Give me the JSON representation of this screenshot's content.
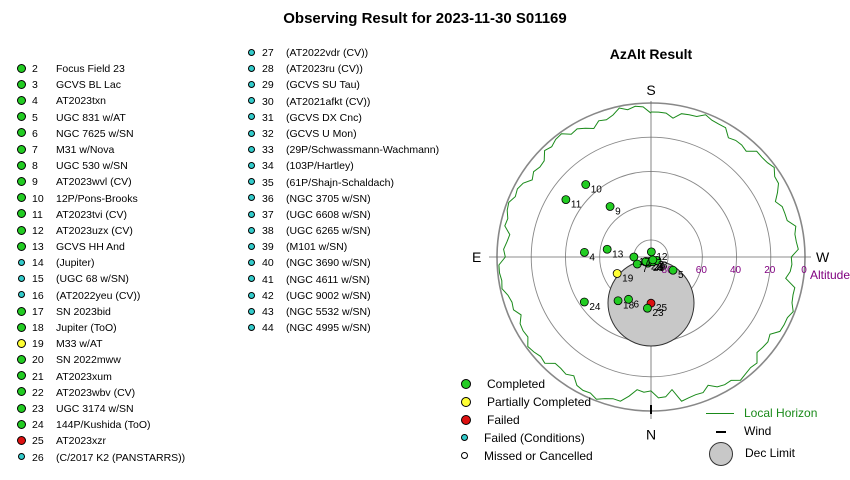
{
  "title": "Observing Result for 2023-11-30 S01169",
  "colors": {
    "completed": "#22cc22",
    "partial": "#ffff33",
    "failed": "#dd1111",
    "failed_conditions": "#33cccc",
    "missed": "#ffffff",
    "horizon": "#1a8a1a",
    "altitude_label": "#800080",
    "dec_limit": "#c8c8c8"
  },
  "targets_left": [
    {
      "id": "2",
      "name": "Focus Field 23",
      "status": "completed"
    },
    {
      "id": "3",
      "name": "GCVS BL Lac",
      "status": "completed"
    },
    {
      "id": "4",
      "name": "AT2023txn",
      "status": "completed"
    },
    {
      "id": "5",
      "name": "UGC 831 w/AT",
      "status": "completed"
    },
    {
      "id": "6",
      "name": "NGC 7625 w/SN",
      "status": "completed"
    },
    {
      "id": "7",
      "name": "M31 w/Nova",
      "status": "completed"
    },
    {
      "id": "8",
      "name": "UGC 530 w/SN",
      "status": "completed"
    },
    {
      "id": "9",
      "name": "AT2023wvl (CV)",
      "status": "completed"
    },
    {
      "id": "10",
      "name": "12P/Pons-Brooks",
      "status": "completed"
    },
    {
      "id": "11",
      "name": "AT2023tvi (CV)",
      "status": "completed"
    },
    {
      "id": "12",
      "name": "AT2023uzx (CV)",
      "status": "completed"
    },
    {
      "id": "13",
      "name": "GCVS HH And",
      "status": "completed"
    },
    {
      "id": "14",
      "name": "(Jupiter)",
      "status": "failed_conditions"
    },
    {
      "id": "15",
      "name": "(UGC 68 w/SN)",
      "status": "failed_conditions"
    },
    {
      "id": "16",
      "name": "(AT2022yeu (CV))",
      "status": "failed_conditions"
    },
    {
      "id": "17",
      "name": "SN 2023bid",
      "status": "completed"
    },
    {
      "id": "18",
      "name": "Jupiter (ToO)",
      "status": "completed"
    },
    {
      "id": "19",
      "name": "M33 w/AT",
      "status": "partial"
    },
    {
      "id": "20",
      "name": "SN 2022mww",
      "status": "completed"
    },
    {
      "id": "21",
      "name": "AT2023xum",
      "status": "completed"
    },
    {
      "id": "22",
      "name": "AT2023wbv (CV)",
      "status": "completed"
    },
    {
      "id": "23",
      "name": "UGC 3174 w/SN",
      "status": "completed"
    },
    {
      "id": "24",
      "name": "144P/Kushida (ToO)",
      "status": "completed"
    },
    {
      "id": "25",
      "name": "AT2023xzr",
      "status": "failed"
    },
    {
      "id": "26",
      "name": "(C/2017 K2 (PANSTARRS))",
      "status": "failed_conditions"
    }
  ],
  "targets_right": [
    {
      "id": "27",
      "name": "(AT2022vdr (CV))",
      "status": "failed_conditions"
    },
    {
      "id": "28",
      "name": "(AT2023ru (CV))",
      "status": "failed_conditions"
    },
    {
      "id": "29",
      "name": "(GCVS SU Tau)",
      "status": "failed_conditions"
    },
    {
      "id": "30",
      "name": "(AT2021afkt (CV))",
      "status": "failed_conditions"
    },
    {
      "id": "31",
      "name": "(GCVS DX Cnc)",
      "status": "failed_conditions"
    },
    {
      "id": "32",
      "name": "(GCVS U Mon)",
      "status": "failed_conditions"
    },
    {
      "id": "33",
      "name": "(29P/Schwassmann-Wachmann)",
      "status": "failed_conditions"
    },
    {
      "id": "34",
      "name": "(103P/Hartley)",
      "status": "failed_conditions"
    },
    {
      "id": "35",
      "name": "(61P/Shajn-Schaldach)",
      "status": "failed_conditions"
    },
    {
      "id": "36",
      "name": "(NGC 3705 w/SN)",
      "status": "failed_conditions"
    },
    {
      "id": "37",
      "name": "(UGC 6608 w/SN)",
      "status": "failed_conditions"
    },
    {
      "id": "38",
      "name": "(UGC 6265 w/SN)",
      "status": "failed_conditions"
    },
    {
      "id": "39",
      "name": "(M101 w/SN)",
      "status": "failed_conditions"
    },
    {
      "id": "40",
      "name": "(NGC 3690 w/SN)",
      "status": "failed_conditions"
    },
    {
      "id": "41",
      "name": "(NGC 4611 w/SN)",
      "status": "failed_conditions"
    },
    {
      "id": "42",
      "name": "(UGC 9002 w/SN)",
      "status": "failed_conditions"
    },
    {
      "id": "43",
      "name": "(NGC 5532 w/SN)",
      "status": "failed_conditions"
    },
    {
      "id": "44",
      "name": "(NGC 4995 w/SN)",
      "status": "failed_conditions"
    }
  ],
  "chart_data": {
    "type": "scatter",
    "title": "AzAlt Result",
    "projection": "polar (azimuth / altitude), S at top, E at left",
    "compass": {
      "top": "S",
      "bottom": "N",
      "left": "E",
      "right": "W"
    },
    "altitude_ticks": [
      "80",
      "60",
      "40",
      "20",
      "0"
    ],
    "altitude_tick_values": [
      80,
      60,
      40,
      20,
      0
    ],
    "altitude_label": "Altitude",
    "points": [
      {
        "label": "25",
        "az": 180,
        "alt": 63,
        "status": "failed"
      },
      {
        "label": "23",
        "az": 184,
        "alt": 60,
        "status": "completed"
      },
      {
        "label": "18",
        "az": 217,
        "alt": 58,
        "status": "completed"
      },
      {
        "label": "6",
        "az": 208,
        "alt": 62,
        "status": "completed"
      },
      {
        "label": "24",
        "az": 236,
        "alt": 43,
        "status": "completed"
      },
      {
        "label": "19",
        "az": 244,
        "alt": 68,
        "status": "partial"
      },
      {
        "label": "4",
        "az": 274,
        "alt": 51,
        "status": "completed"
      },
      {
        "label": "13",
        "az": 280,
        "alt": 64,
        "status": "completed"
      },
      {
        "label": "5",
        "az": 121,
        "alt": 75,
        "status": "completed"
      },
      {
        "label": "21",
        "az": 207,
        "alt": 86,
        "status": "completed"
      },
      {
        "label": "20",
        "az": 202,
        "alt": 87,
        "status": "completed"
      },
      {
        "label": "22",
        "az": 229,
        "alt": 86,
        "status": "completed"
      },
      {
        "label": "3",
        "az": 158,
        "alt": 87,
        "status": "completed"
      },
      {
        "label": "8",
        "az": 120,
        "alt": 86,
        "status": "completed"
      },
      {
        "label": "7",
        "az": 243,
        "alt": 81,
        "status": "completed"
      },
      {
        "label": "2",
        "az": 147,
        "alt": 88,
        "status": "completed"
      },
      {
        "label": "17",
        "az": 270,
        "alt": 80,
        "status": "completed"
      },
      {
        "label": "12",
        "az": 4,
        "alt": 87,
        "status": "completed"
      },
      {
        "label": "9",
        "az": 321,
        "alt": 52,
        "status": "completed"
      },
      {
        "label": "11",
        "az": 304,
        "alt": 30,
        "status": "completed"
      },
      {
        "label": "10",
        "az": 318,
        "alt": 33,
        "status": "completed"
      }
    ],
    "legend": [
      {
        "key": "completed",
        "label": "Completed"
      },
      {
        "key": "partial",
        "label": "Partially Completed"
      },
      {
        "key": "failed",
        "label": "Failed"
      },
      {
        "key": "failed_conditions",
        "label": "Failed (Conditions)"
      },
      {
        "key": "missed",
        "label": "Missed or Cancelled"
      }
    ],
    "legend2": [
      {
        "key": "horizon",
        "label": "Local Horizon"
      },
      {
        "key": "wind",
        "label": "Wind"
      },
      {
        "key": "dec_limit",
        "label": "Dec Limit"
      }
    ]
  }
}
